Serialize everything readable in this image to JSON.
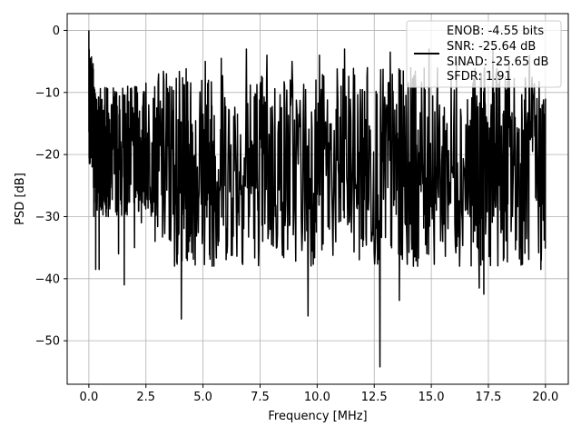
{
  "chart_data": {
    "type": "line",
    "title": "",
    "xlabel": "Frequency [MHz]",
    "ylabel": "PSD [dB]",
    "xlim": [
      -0.95,
      21.0
    ],
    "ylim": [
      -57.0,
      2.7
    ],
    "xticks": [
      0.0,
      2.5,
      5.0,
      7.5,
      10.0,
      12.5,
      15.0,
      17.5,
      20.0
    ],
    "xtick_labels": [
      "0.0",
      "2.5",
      "5.0",
      "7.5",
      "10.0",
      "12.5",
      "15.0",
      "17.5",
      "20.0"
    ],
    "yticks": [
      0,
      -10,
      -20,
      -30,
      -40,
      -50
    ],
    "ytick_labels": [
      "0",
      "−10",
      "−20",
      "−30",
      "−40",
      "−50"
    ],
    "grid": true,
    "legend_placement": "top-right",
    "legend_lines": [
      "ENOB: -4.55 bits",
      "SNR: -25.64 dB",
      "SINAD: -25.65 dB",
      "SFDR: 1.91"
    ],
    "series": [
      {
        "color": "#000000",
        "note_points": "approximate envelope of a dense noisy PSD trace",
        "points": [
          [
            0.0,
            0.0
          ],
          [
            0.03,
            -17.5
          ],
          [
            0.08,
            -4.5
          ],
          [
            0.12,
            -12.0
          ],
          [
            0.2,
            -22.0
          ],
          [
            0.3,
            -38.5
          ],
          [
            0.45,
            -38.5
          ],
          [
            0.55,
            -26.0
          ],
          [
            0.7,
            -9.5
          ],
          [
            0.85,
            -30.0
          ],
          [
            1.1,
            -13.0
          ],
          [
            1.3,
            -36.0
          ],
          [
            1.55,
            -41.0
          ],
          [
            1.7,
            -9.0
          ],
          [
            2.0,
            -35.0
          ],
          [
            2.3,
            -31.0
          ],
          [
            2.5,
            -8.5
          ],
          [
            2.9,
            -34.0
          ],
          [
            3.4,
            -7.0
          ],
          [
            3.8,
            -28.0
          ],
          [
            4.05,
            -46.5
          ],
          [
            4.3,
            -10.0
          ],
          [
            4.6,
            -25.0
          ],
          [
            5.1,
            -5.0
          ],
          [
            5.4,
            -38.0
          ],
          [
            5.8,
            -4.5
          ],
          [
            6.3,
            -27.0
          ],
          [
            6.9,
            -3.0
          ],
          [
            7.4,
            -29.0
          ],
          [
            7.8,
            -4.0
          ],
          [
            8.4,
            -29.0
          ],
          [
            8.9,
            -5.0
          ],
          [
            9.6,
            -46.0
          ],
          [
            10.1,
            -4.0
          ],
          [
            10.8,
            -31.0
          ],
          [
            11.2,
            -3.0
          ],
          [
            11.8,
            -28.0
          ],
          [
            12.2,
            -6.0
          ],
          [
            12.75,
            -54.2
          ],
          [
            13.2,
            -3.5
          ],
          [
            13.6,
            -43.5
          ],
          [
            14.1,
            -6.0
          ],
          [
            14.4,
            -38.0
          ],
          [
            14.9,
            -3.0
          ],
          [
            15.5,
            -34.0
          ],
          [
            16.1,
            -5.0
          ],
          [
            16.7,
            -30.0
          ],
          [
            17.1,
            -41.5
          ],
          [
            17.3,
            -42.5
          ],
          [
            17.7,
            -3.0
          ],
          [
            18.1,
            -32.0
          ],
          [
            18.4,
            -5.0
          ],
          [
            18.9,
            -35.0
          ],
          [
            19.3,
            -4.0
          ],
          [
            19.8,
            -38.5
          ],
          [
            20.0,
            -11.0
          ]
        ]
      }
    ]
  }
}
